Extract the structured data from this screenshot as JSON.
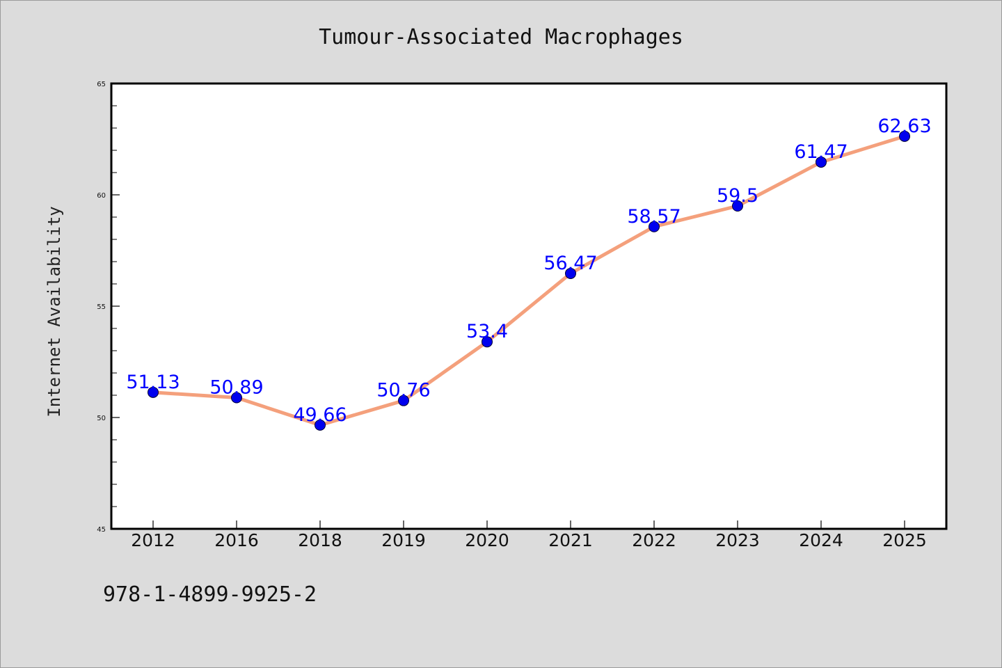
{
  "chart_data": {
    "type": "line",
    "title": "Tumour-Associated Macrophages",
    "xlabel": "",
    "ylabel": "Internet Availability",
    "categories": [
      "2012",
      "2016",
      "2018",
      "2019",
      "2020",
      "2021",
      "2022",
      "2023",
      "2024",
      "2025"
    ],
    "series": [
      {
        "values": [
          51.13,
          50.89,
          49.66,
          50.76,
          53.4,
          56.47,
          58.57,
          59.5,
          61.47,
          62.63
        ],
        "data_labels": [
          "51.13",
          "50.89",
          "49.66",
          "50.76",
          "53.4",
          "56.47",
          "58.57",
          "59.5",
          "61.47",
          "62.63"
        ],
        "line_color": "#f4a07c",
        "marker_color": "#0000ee"
      }
    ],
    "ylim": [
      45,
      65
    ],
    "yticks": [
      45,
      50,
      55,
      60,
      65
    ],
    "ytick_labels": [
      "45",
      "50",
      "55",
      "60",
      "65"
    ],
    "grid": false,
    "legend": "none",
    "label_color": "#0000ff",
    "background": "#dcdcdc",
    "plot_background": "#ffffff"
  },
  "footer": {
    "code": "978-1-4899-9925-2"
  }
}
